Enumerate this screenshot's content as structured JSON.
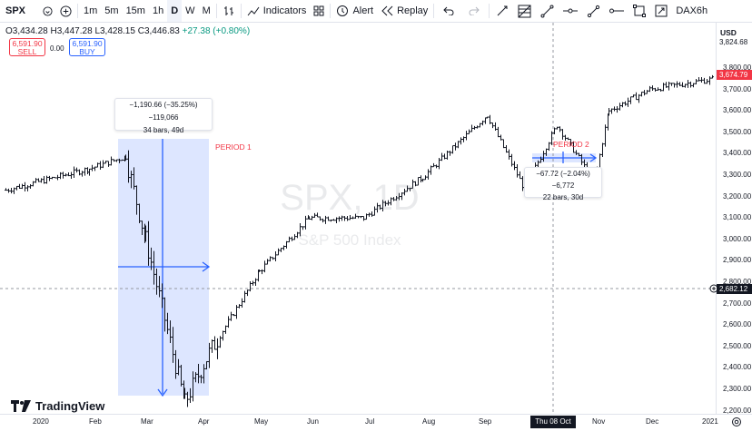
{
  "toolbar": {
    "symbol": "SPX",
    "intervals": [
      "1m",
      "5m",
      "15m",
      "1h",
      "D",
      "W",
      "M"
    ],
    "active_interval": "D",
    "indicators_label": "Indicators",
    "alert_label": "Alert",
    "replay_label": "Replay",
    "layout_name": "DAX6h",
    "icons": [
      "add-symbol-icon",
      "bar-style-icon",
      "indicators-icon",
      "templates-icon",
      "alert-icon",
      "replay-icon",
      "undo-icon",
      "redo-icon",
      "cursor-icon",
      "fib-icon",
      "trendline-icon",
      "horizontal-line-icon",
      "ray-icon",
      "arrow-line-icon",
      "rectangle-icon",
      "measure-icon"
    ]
  },
  "legend": {
    "open": "O3,434.28",
    "high": "H3,447.28",
    "low": "L3,428.15",
    "close": "C3,446.83",
    "change": "+27.38 (+0.80%)"
  },
  "trade": {
    "sell_price": "6,591.90",
    "sell_label": "SELL",
    "spread": "0.00",
    "buy_price": "6,591.90",
    "buy_label": "BUY"
  },
  "price_axis": {
    "currency": "USD",
    "labels": [
      "3,800.00",
      "3,700.00",
      "3,600.00",
      "3,500.00",
      "3,400.00",
      "3,300.00",
      "3,200.00",
      "3,100.00",
      "3,000.00",
      "2,900.00",
      "2,800.00",
      "2,700.00",
      "2,600.00",
      "2,500.00",
      "2,400.00",
      "2,300.00",
      "2,200.00"
    ],
    "high_flag": "3,824.68",
    "last_flag": "3,674.79",
    "last_flag_color": "#f23645",
    "crosshair_flag": "2,682.12"
  },
  "time_axis": {
    "labels": [
      "2020",
      "Feb",
      "Mar",
      "Apr",
      "May",
      "Jun",
      "Jul",
      "Aug",
      "Sep",
      "Nov",
      "Dec",
      "2021"
    ],
    "crosshair_date": "Thu 08 Oct '20"
  },
  "measure1": {
    "line1": "−1,190.66 (−35.25%) −119,066",
    "line2": "34 bars, 49d",
    "label": "PERIOD 1"
  },
  "measure2": {
    "line1": "−67.72 (−2.04%) −6,772",
    "line2": "22 bars, 30d",
    "label": "PERIOD 2"
  },
  "watermark": {
    "symbol": "SPX, 1D",
    "name": "S&P 500 Index"
  },
  "brand": "TradingView",
  "chart_data": {
    "type": "ohlc",
    "symbol": "SPX",
    "interval": "1D",
    "ylim": [
      2150,
      3850
    ],
    "x": [
      "2020-01",
      "2020-02",
      "2020-02-19",
      "2020-03",
      "2020-03-23",
      "2020-04",
      "2020-05",
      "2020-06",
      "2020-07",
      "2020-08",
      "2020-09-02",
      "2020-09-23",
      "2020-10-12",
      "2020-10-30",
      "2020-11",
      "2020-12",
      "2021-01"
    ],
    "close": [
      3230,
      3330,
      3386,
      3000,
      2237,
      2470,
      2850,
      3100,
      3100,
      3290,
      3580,
      3237,
      3534,
      3270,
      3600,
      3700,
      3750
    ],
    "series_color_up": "#089981",
    "series_color_down": "#131722"
  }
}
